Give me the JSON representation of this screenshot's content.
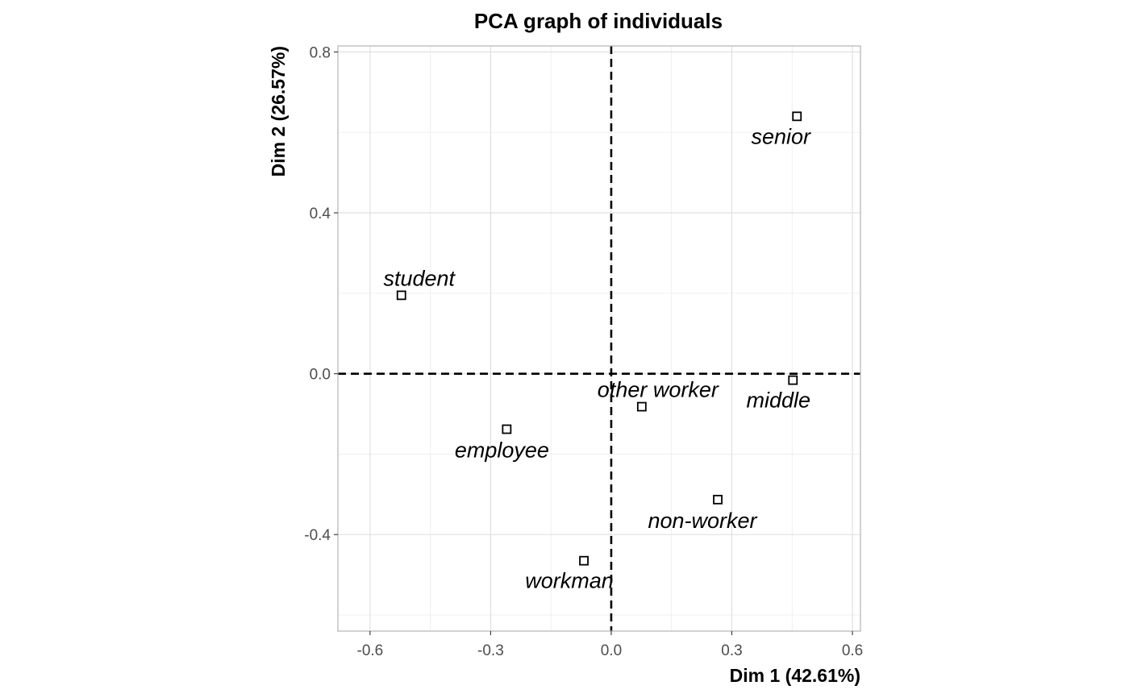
{
  "chart_data": {
    "type": "scatter",
    "title": "PCA graph of individuals",
    "xlabel": "Dim 1 (42.61%)",
    "ylabel": "Dim 2 (26.57%)",
    "xlim": [
      -0.68,
      0.62
    ],
    "ylim": [
      -0.64,
      0.815
    ],
    "x_ticks": [
      -0.6,
      -0.3,
      0.0,
      0.3,
      0.6
    ],
    "x_tick_labels": [
      "-0.6",
      "-0.3",
      "0.0",
      "0.3",
      "0.6"
    ],
    "y_ticks": [
      -0.4,
      0.0,
      0.4,
      0.8
    ],
    "y_tick_labels": [
      "-0.4",
      "0.0",
      "0.4",
      "0.8"
    ],
    "x_minor_ticks": [
      -0.45,
      -0.15,
      0.15,
      0.45
    ],
    "y_minor_ticks": [
      -0.6,
      -0.2,
      0.2,
      0.6
    ],
    "grid": true,
    "reference_lines": {
      "x": 0,
      "y": 0,
      "style": "dashed"
    },
    "marker": "open-square",
    "points": [
      {
        "label": "senior",
        "x": 0.462,
        "y": 0.64,
        "label_pos": "below-left"
      },
      {
        "label": "student",
        "x": -0.522,
        "y": 0.195,
        "label_pos": "above-right"
      },
      {
        "label": "other worker",
        "x": 0.076,
        "y": -0.082,
        "label_pos": "above"
      },
      {
        "label": "middle",
        "x": 0.452,
        "y": -0.016,
        "label_pos": "below-left"
      },
      {
        "label": "employee",
        "x": -0.26,
        "y": -0.138,
        "label_pos": "below"
      },
      {
        "label": "non-worker",
        "x": 0.265,
        "y": -0.313,
        "label_pos": "below-left"
      },
      {
        "label": "workman",
        "x": -0.068,
        "y": -0.465,
        "label_pos": "below"
      }
    ]
  }
}
